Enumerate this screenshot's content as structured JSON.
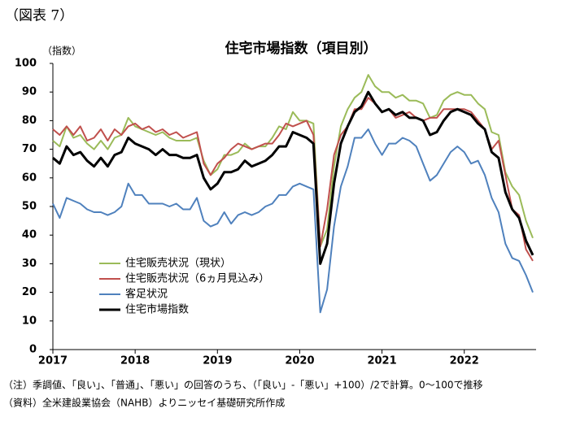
{
  "figure_label": "（図表 7）",
  "chart_data": {
    "type": "line",
    "title": "住宅市場指数（項目別）",
    "y_label": "（指数）",
    "categories": [
      "2017",
      null,
      null,
      null,
      null,
      null,
      null,
      null,
      null,
      null,
      null,
      null,
      "2018",
      null,
      null,
      null,
      null,
      null,
      null,
      null,
      null,
      null,
      null,
      null,
      "2019",
      null,
      null,
      null,
      null,
      null,
      null,
      null,
      null,
      null,
      null,
      null,
      "2020",
      null,
      null,
      null,
      null,
      null,
      null,
      null,
      null,
      null,
      null,
      null,
      "2021",
      null,
      null,
      null,
      null,
      null,
      null,
      null,
      null,
      null,
      null,
      null,
      "2022",
      null,
      null,
      null,
      null,
      null,
      null,
      null,
      null,
      null,
      null
    ],
    "ylim": [
      0,
      100
    ],
    "yticks": [
      0,
      10,
      20,
      30,
      40,
      50,
      60,
      70,
      80,
      90,
      100
    ],
    "legend": "lower-left",
    "series": [
      {
        "name": "住宅販売状況（現状）",
        "color": "#9bbb59",
        "width": 2,
        "values": [
          73,
          71,
          78,
          74,
          75,
          72,
          70,
          73,
          70,
          74,
          75,
          81,
          78,
          77,
          76,
          75,
          76,
          74,
          73,
          73,
          73,
          74,
          66,
          61,
          63,
          68,
          68,
          69,
          72,
          70,
          71,
          71,
          74,
          78,
          77,
          83,
          80,
          80,
          79,
          36,
          42,
          64,
          78,
          84,
          88,
          90,
          96,
          92,
          90,
          90,
          88,
          89,
          87,
          87,
          86,
          81,
          82,
          87,
          89,
          90,
          89,
          89,
          86,
          84,
          76,
          75,
          62,
          57,
          54,
          45,
          39
        ]
      },
      {
        "name": "住宅販売状況（6ヵ月見込み）",
        "color": "#c0504d",
        "width": 2,
        "values": [
          77,
          75,
          78,
          75,
          78,
          73,
          74,
          77,
          73,
          77,
          75,
          78,
          79,
          77,
          78,
          76,
          77,
          75,
          76,
          74,
          75,
          76,
          65,
          61,
          65,
          67,
          70,
          72,
          71,
          70,
          71,
          72,
          72,
          75,
          79,
          78,
          79,
          80,
          75,
          36,
          49,
          68,
          75,
          78,
          84,
          84,
          88,
          86,
          83,
          84,
          81,
          82,
          83,
          81,
          80,
          81,
          81,
          84,
          84,
          84,
          84,
          83,
          80,
          77,
          70,
          73,
          61,
          49,
          47,
          35,
          31
        ]
      },
      {
        "name": "客足状況",
        "color": "#4f81bd",
        "width": 2,
        "values": [
          51,
          46,
          53,
          52,
          51,
          49,
          48,
          48,
          47,
          48,
          50,
          58,
          54,
          54,
          51,
          51,
          51,
          50,
          51,
          49,
          49,
          53,
          45,
          43,
          44,
          48,
          44,
          47,
          48,
          47,
          48,
          50,
          51,
          54,
          54,
          57,
          58,
          57,
          56,
          13,
          21,
          43,
          57,
          64,
          74,
          74,
          77,
          72,
          68,
          72,
          72,
          74,
          73,
          71,
          65,
          59,
          61,
          65,
          69,
          71,
          69,
          65,
          66,
          61,
          53,
          48,
          37,
          32,
          31,
          26,
          20
        ]
      },
      {
        "name": "住宅市場指数",
        "color": "#000000",
        "width": 3,
        "values": [
          67,
          65,
          71,
          68,
          69,
          66,
          64,
          67,
          64,
          68,
          69,
          74,
          72,
          71,
          70,
          68,
          70,
          68,
          68,
          67,
          67,
          68,
          60,
          56,
          58,
          62,
          62,
          63,
          66,
          64,
          65,
          66,
          68,
          71,
          71,
          76,
          75,
          74,
          72,
          30,
          37,
          58,
          72,
          78,
          83,
          85,
          90,
          86,
          83,
          84,
          82,
          83,
          81,
          81,
          80,
          75,
          76,
          80,
          83,
          84,
          83,
          82,
          79,
          77,
          69,
          67,
          55,
          49,
          46,
          38,
          33
        ]
      }
    ]
  },
  "notes": [
    "（注）季調値、「良い」、「普通」、「悪い」の回答のうち、（「良い」-「悪い」+100）/2で計算。0～100で推移",
    "（資料）全米建設業協会（NAHB）よりニッセイ基礎研究所作成"
  ]
}
